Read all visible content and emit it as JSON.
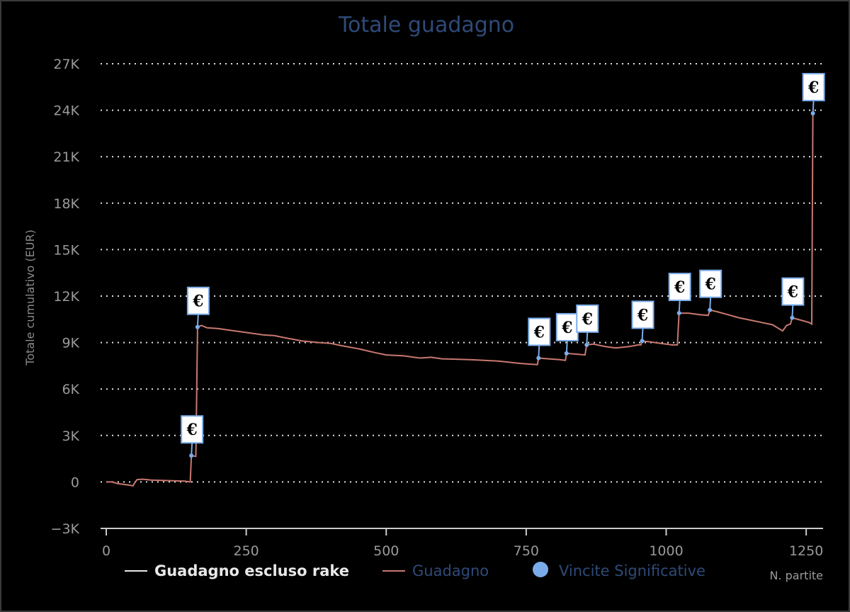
{
  "chart_data": {
    "type": "line",
    "title": "Totale guadagno",
    "ylabel": "Totale cumulativo (EUR)",
    "xlabel": "N. partite",
    "xlim": [
      0,
      1265
    ],
    "ylim": [
      -3000,
      27000
    ],
    "x_ticks": [
      0,
      250,
      500,
      750,
      1000,
      1250
    ],
    "x_tick_labels": [
      "0",
      "250",
      "500",
      "750",
      "1000",
      "1250"
    ],
    "y_ticks": [
      -3000,
      0,
      3000,
      6000,
      9000,
      12000,
      15000,
      18000,
      21000,
      24000,
      27000
    ],
    "y_tick_labels": [
      "−3K",
      "0",
      "3K",
      "6K",
      "9K",
      "12K",
      "15K",
      "18K",
      "21K",
      "24K",
      "27K"
    ],
    "grid": "horizontal dotted",
    "legend_position": "bottom",
    "series": [
      {
        "name": "Guadagno escluso rake",
        "color": "#e8e8e8",
        "points": []
      },
      {
        "name": "Guadagno",
        "color": "#c87870",
        "points": [
          [
            0,
            0
          ],
          [
            10,
            0
          ],
          [
            20,
            -100
          ],
          [
            30,
            -150
          ],
          [
            40,
            -200
          ],
          [
            48,
            -250
          ],
          [
            50,
            -100
          ],
          [
            55,
            150
          ],
          [
            65,
            180
          ],
          [
            80,
            120
          ],
          [
            100,
            100
          ],
          [
            120,
            80
          ],
          [
            140,
            50
          ],
          [
            150,
            0
          ],
          [
            152,
            1700
          ],
          [
            160,
            1650
          ],
          [
            163,
            10000
          ],
          [
            170,
            10100
          ],
          [
            180,
            9950
          ],
          [
            200,
            9900
          ],
          [
            220,
            9800
          ],
          [
            250,
            9650
          ],
          [
            280,
            9500
          ],
          [
            300,
            9450
          ],
          [
            320,
            9300
          ],
          [
            350,
            9100
          ],
          [
            380,
            9000
          ],
          [
            400,
            8950
          ],
          [
            420,
            8800
          ],
          [
            450,
            8600
          ],
          [
            480,
            8350
          ],
          [
            500,
            8200
          ],
          [
            530,
            8150
          ],
          [
            560,
            8000
          ],
          [
            580,
            8050
          ],
          [
            600,
            7950
          ],
          [
            650,
            7900
          ],
          [
            700,
            7800
          ],
          [
            740,
            7650
          ],
          [
            760,
            7600
          ],
          [
            770,
            7580
          ],
          [
            772,
            8000
          ],
          [
            790,
            7950
          ],
          [
            810,
            7900
          ],
          [
            820,
            7850
          ],
          [
            822,
            8300
          ],
          [
            840,
            8250
          ],
          [
            855,
            8200
          ],
          [
            858,
            8850
          ],
          [
            870,
            8900
          ],
          [
            890,
            8750
          ],
          [
            910,
            8650
          ],
          [
            935,
            8750
          ],
          [
            950,
            8850
          ],
          [
            955,
            8850
          ],
          [
            957,
            9100
          ],
          [
            970,
            9050
          ],
          [
            990,
            8950
          ],
          [
            1010,
            8850
          ],
          [
            1020,
            8850
          ],
          [
            1023,
            10900
          ],
          [
            1040,
            10900
          ],
          [
            1060,
            10800
          ],
          [
            1075,
            10750
          ],
          [
            1078,
            11100
          ],
          [
            1090,
            11000
          ],
          [
            1110,
            10800
          ],
          [
            1130,
            10600
          ],
          [
            1150,
            10450
          ],
          [
            1170,
            10300
          ],
          [
            1190,
            10150
          ],
          [
            1208,
            9750
          ],
          [
            1215,
            10100
          ],
          [
            1222,
            10200
          ],
          [
            1225,
            10600
          ],
          [
            1240,
            10450
          ],
          [
            1255,
            10300
          ],
          [
            1260,
            10200
          ],
          [
            1262,
            23800
          ]
        ]
      }
    ],
    "markers": {
      "name": "Vincite Significative",
      "color": "#7aacea",
      "symbol": "€",
      "points": [
        [
          152,
          1700
        ],
        [
          163,
          10000
        ],
        [
          772,
          8000
        ],
        [
          822,
          8300
        ],
        [
          858,
          8850
        ],
        [
          957,
          9100
        ],
        [
          1023,
          10900
        ],
        [
          1078,
          11100
        ],
        [
          1225,
          10600
        ],
        [
          1262,
          23800
        ]
      ]
    }
  }
}
